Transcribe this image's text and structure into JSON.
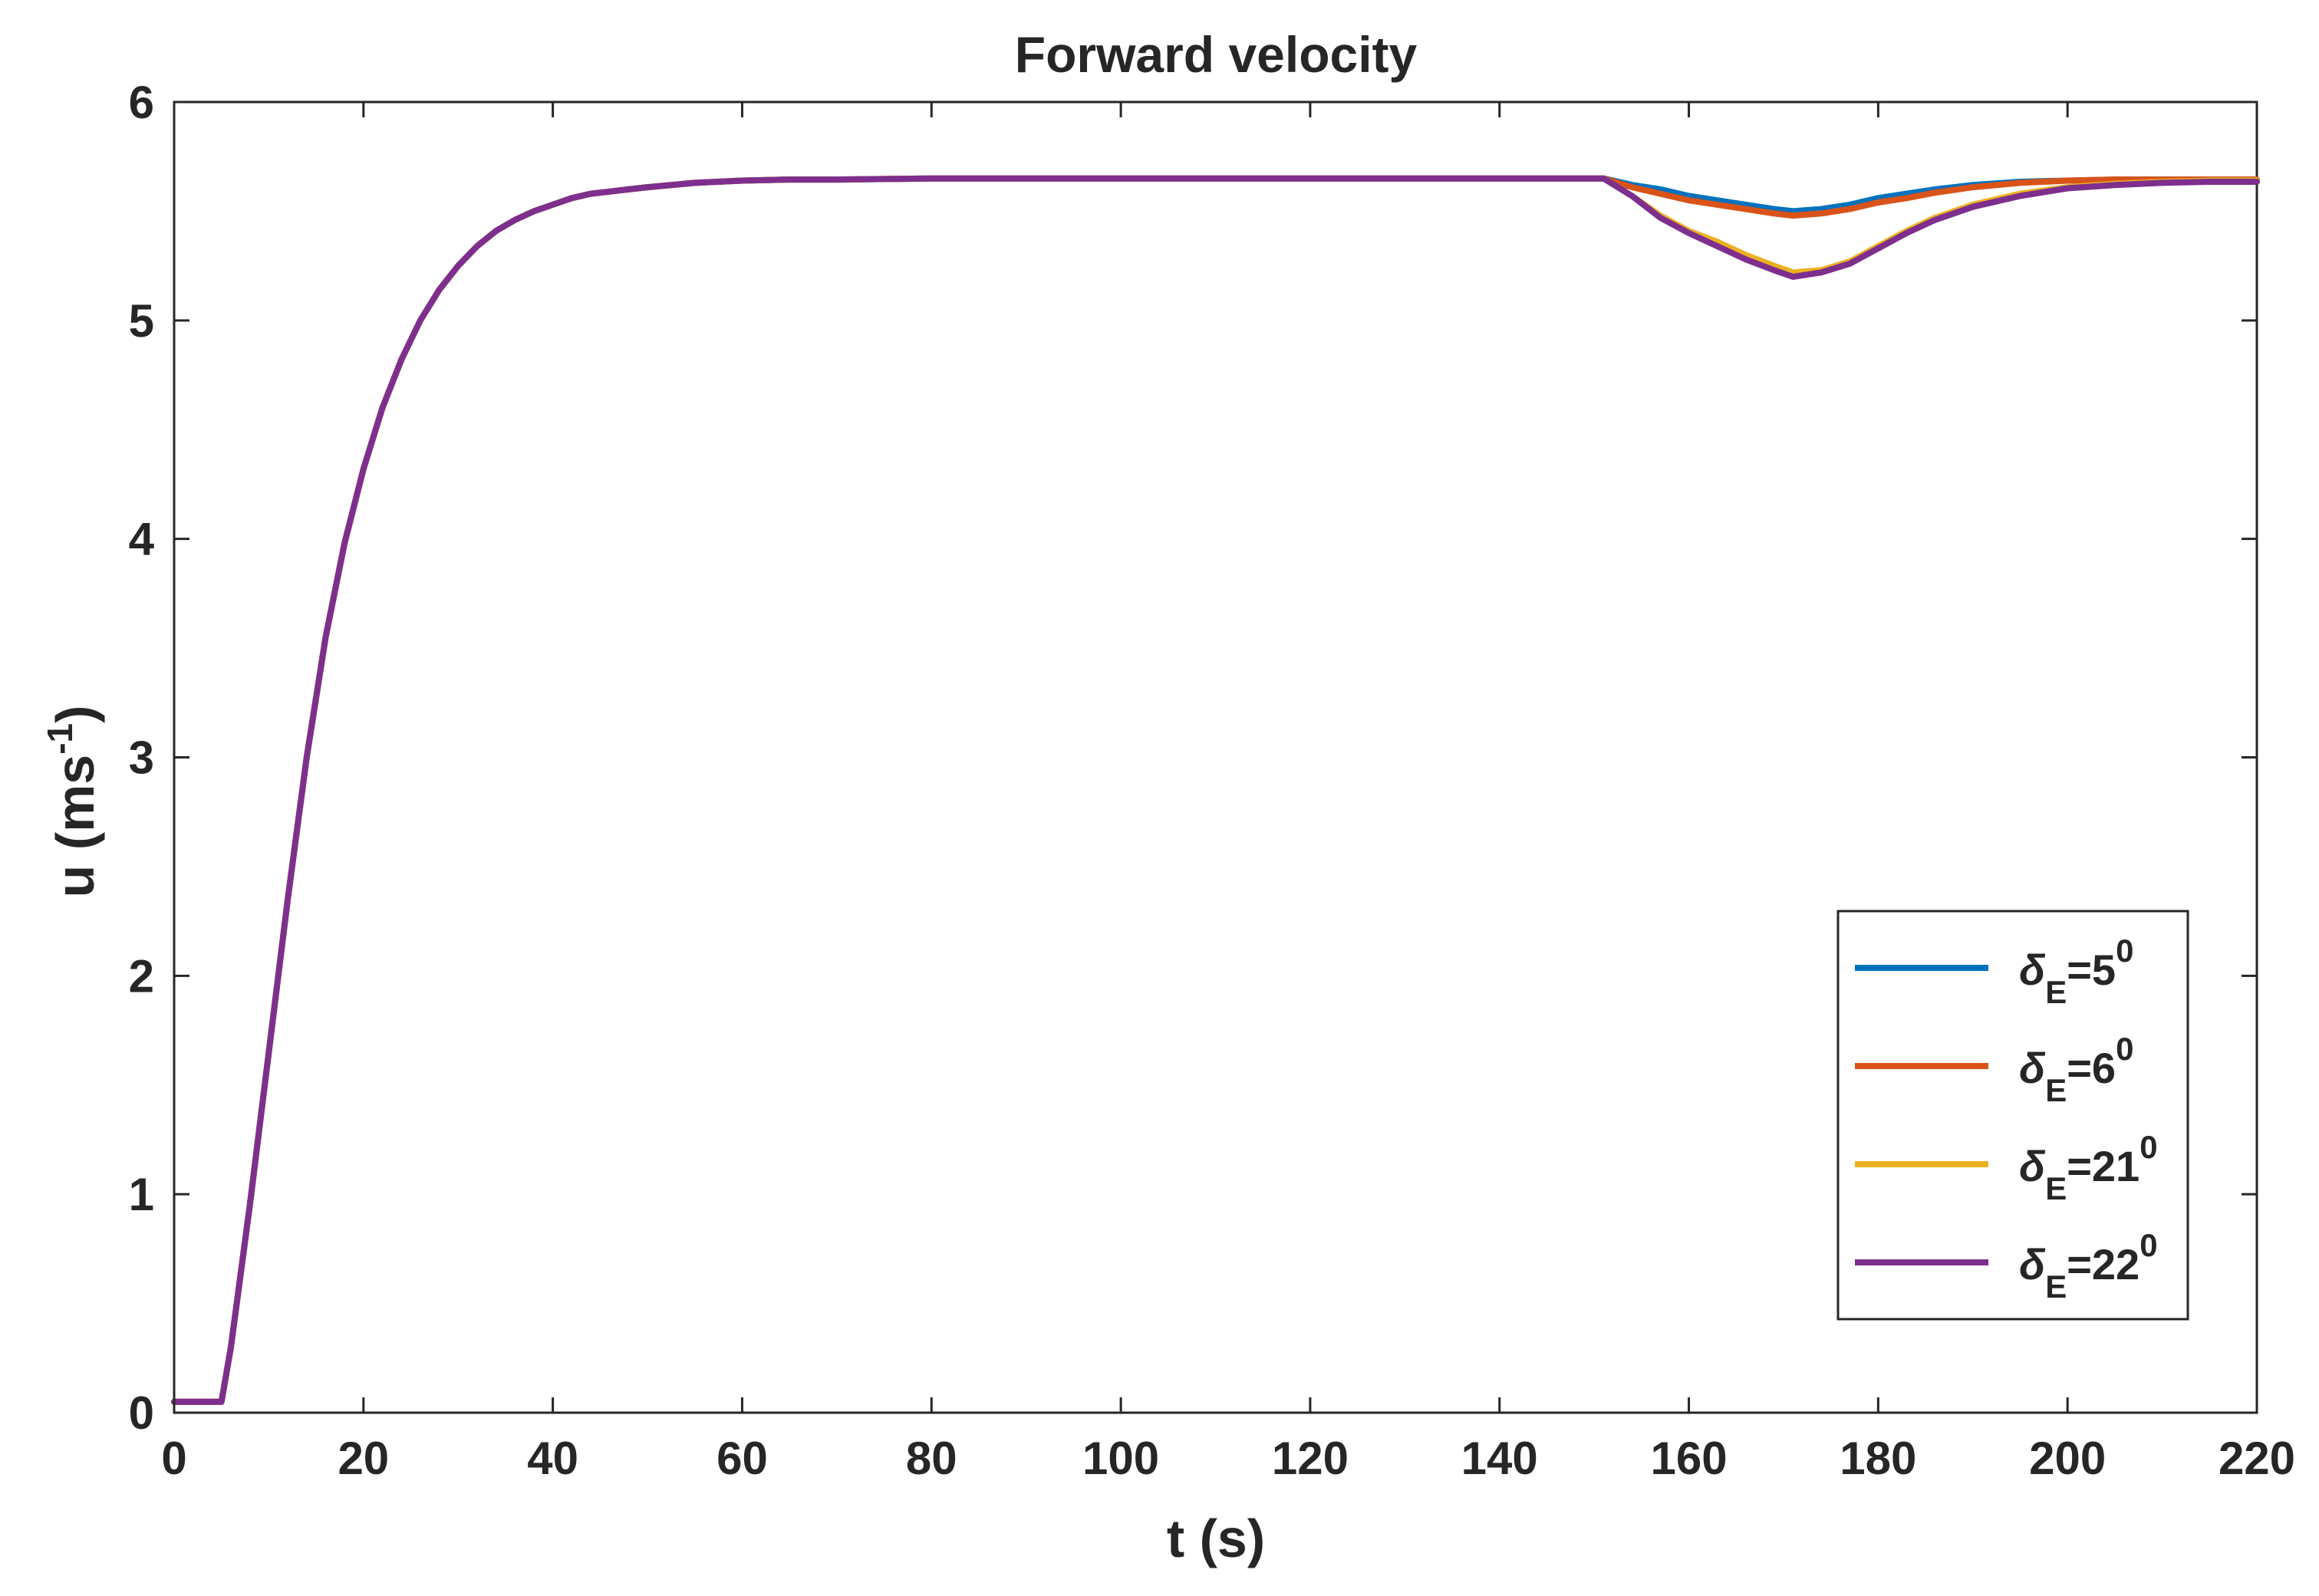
{
  "chart_data": {
    "type": "line",
    "title": "Forward velocity",
    "xlabel": "t (s)",
    "ylabel": {
      "base": "u (ms",
      "sup": "-1",
      "end": ")"
    },
    "xlim": [
      0,
      220
    ],
    "ylim": [
      0,
      6
    ],
    "xticks": [
      0,
      20,
      40,
      60,
      80,
      100,
      120,
      140,
      160,
      180,
      200,
      220
    ],
    "yticks": [
      0,
      1,
      2,
      3,
      4,
      5,
      6
    ],
    "grid": false,
    "legend_position": "bottom-right",
    "series": [
      {
        "name": "δE=5°",
        "label": {
          "sym": "δ",
          "sub": "E",
          "eq": "=5",
          "sup": "0"
        },
        "color": "#0072BD",
        "x": [
          0,
          5,
          6,
          8,
          10,
          12,
          14,
          16,
          18,
          20,
          22,
          24,
          26,
          28,
          30,
          32,
          34,
          36,
          38,
          40,
          42,
          44,
          46,
          48,
          50,
          55,
          60,
          65,
          70,
          80,
          100,
          120,
          140,
          150,
          151,
          154,
          157,
          160,
          163,
          166,
          169,
          171,
          174,
          177,
          180,
          183,
          186,
          190,
          195,
          200,
          205,
          210,
          215,
          220
        ],
        "y": [
          0.05,
          0.05,
          0.3,
          0.95,
          1.65,
          2.35,
          3.0,
          3.55,
          3.98,
          4.32,
          4.6,
          4.82,
          5.0,
          5.14,
          5.25,
          5.34,
          5.41,
          5.46,
          5.5,
          5.53,
          5.56,
          5.58,
          5.59,
          5.6,
          5.61,
          5.63,
          5.64,
          5.645,
          5.645,
          5.65,
          5.65,
          5.65,
          5.65,
          5.65,
          5.65,
          5.62,
          5.6,
          5.57,
          5.55,
          5.53,
          5.51,
          5.5,
          5.51,
          5.53,
          5.56,
          5.58,
          5.6,
          5.62,
          5.635,
          5.64,
          5.645,
          5.645,
          5.645,
          5.645
        ]
      },
      {
        "name": "δE=6°",
        "label": {
          "sym": "δ",
          "sub": "E",
          "eq": "=6",
          "sup": "0"
        },
        "color": "#D95319",
        "x": [
          0,
          5,
          6,
          8,
          10,
          12,
          14,
          16,
          18,
          20,
          22,
          24,
          26,
          28,
          30,
          32,
          34,
          36,
          38,
          40,
          42,
          44,
          46,
          48,
          50,
          55,
          60,
          65,
          70,
          80,
          100,
          120,
          140,
          150,
          151,
          154,
          157,
          160,
          163,
          166,
          169,
          171,
          174,
          177,
          180,
          183,
          186,
          190,
          195,
          200,
          205,
          210,
          215,
          220
        ],
        "y": [
          0.05,
          0.05,
          0.3,
          0.95,
          1.65,
          2.35,
          3.0,
          3.55,
          3.98,
          4.32,
          4.6,
          4.82,
          5.0,
          5.14,
          5.25,
          5.34,
          5.41,
          5.46,
          5.5,
          5.53,
          5.56,
          5.58,
          5.59,
          5.6,
          5.61,
          5.63,
          5.64,
          5.645,
          5.645,
          5.65,
          5.65,
          5.65,
          5.65,
          5.65,
          5.65,
          5.61,
          5.58,
          5.55,
          5.53,
          5.51,
          5.49,
          5.48,
          5.49,
          5.51,
          5.54,
          5.56,
          5.585,
          5.61,
          5.63,
          5.64,
          5.645,
          5.645,
          5.645,
          5.645
        ]
      },
      {
        "name": "δE=21°",
        "label": {
          "sym": "δ",
          "sub": "E",
          "eq": "=21",
          "sup": "0"
        },
        "color": "#EDB120",
        "x": [
          0,
          5,
          6,
          8,
          10,
          12,
          14,
          16,
          18,
          20,
          22,
          24,
          26,
          28,
          30,
          32,
          34,
          36,
          38,
          40,
          42,
          44,
          46,
          48,
          50,
          55,
          60,
          65,
          70,
          80,
          100,
          120,
          140,
          150,
          151,
          154,
          157,
          160,
          163,
          166,
          169,
          171,
          174,
          177,
          180,
          183,
          186,
          190,
          195,
          200,
          205,
          210,
          215,
          220
        ],
        "y": [
          0.05,
          0.05,
          0.3,
          0.95,
          1.65,
          2.35,
          3.0,
          3.55,
          3.98,
          4.32,
          4.6,
          4.82,
          5.0,
          5.14,
          5.25,
          5.34,
          5.41,
          5.46,
          5.5,
          5.53,
          5.56,
          5.58,
          5.59,
          5.6,
          5.61,
          5.63,
          5.64,
          5.645,
          5.645,
          5.65,
          5.65,
          5.65,
          5.65,
          5.65,
          5.65,
          5.57,
          5.48,
          5.41,
          5.36,
          5.3,
          5.25,
          5.22,
          5.23,
          5.27,
          5.34,
          5.41,
          5.47,
          5.53,
          5.58,
          5.61,
          5.625,
          5.635,
          5.64,
          5.64
        ]
      },
      {
        "name": "δE=22°",
        "label": {
          "sym": "δ",
          "sub": "E",
          "eq": "=22",
          "sup": "0"
        },
        "color": "#7E2F8E",
        "x": [
          0,
          5,
          6,
          8,
          10,
          12,
          14,
          16,
          18,
          20,
          22,
          24,
          26,
          28,
          30,
          32,
          34,
          36,
          38,
          40,
          42,
          44,
          46,
          48,
          50,
          55,
          60,
          65,
          70,
          80,
          100,
          120,
          140,
          150,
          151,
          154,
          157,
          160,
          163,
          166,
          169,
          171,
          174,
          177,
          180,
          183,
          186,
          190,
          195,
          200,
          205,
          210,
          215,
          220
        ],
        "y": [
          0.05,
          0.05,
          0.3,
          0.95,
          1.65,
          2.35,
          3.0,
          3.55,
          3.98,
          4.32,
          4.6,
          4.82,
          5.0,
          5.14,
          5.25,
          5.34,
          5.41,
          5.46,
          5.5,
          5.53,
          5.56,
          5.58,
          5.59,
          5.6,
          5.61,
          5.63,
          5.64,
          5.645,
          5.645,
          5.65,
          5.65,
          5.65,
          5.65,
          5.65,
          5.65,
          5.57,
          5.47,
          5.4,
          5.34,
          5.28,
          5.23,
          5.2,
          5.22,
          5.26,
          5.33,
          5.4,
          5.46,
          5.52,
          5.57,
          5.605,
          5.62,
          5.63,
          5.635,
          5.635
        ]
      }
    ]
  }
}
